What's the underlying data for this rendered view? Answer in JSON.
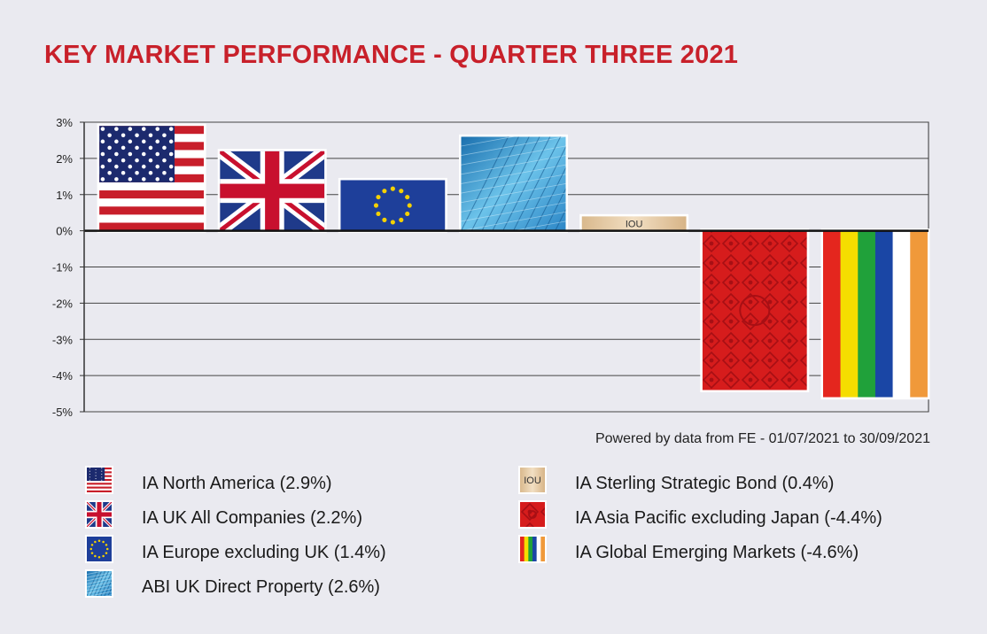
{
  "title": "KEY MARKET PERFORMANCE - QUARTER THREE 2021",
  "source": "Powered by data from FE - 01/07/2021 to 30/09/2021",
  "colors": {
    "title": "#c8202a",
    "us_red": "#c81e2a",
    "us_blue": "#1c2a6e",
    "uk_blue": "#1f3a8a",
    "eu_blue": "#1e3f9a",
    "eu_star": "#f5d100",
    "property": "#4aa8d8",
    "bond": "#e3c9a5",
    "asia_red": "#d61c1c",
    "em_stripes": [
      "#e4261e",
      "#f5dd00",
      "#20a13a",
      "#1a46a5",
      "#ffffff",
      "#f0993a"
    ]
  },
  "chart_data": {
    "type": "bar",
    "title": "KEY MARKET PERFORMANCE - QUARTER THREE 2021",
    "xlabel": "",
    "ylabel": "",
    "ylim": [
      -5,
      3
    ],
    "yticks": [
      3,
      2,
      1,
      0,
      -1,
      -2,
      -3,
      -4,
      -5
    ],
    "ytick_labels": [
      "3%",
      "2%",
      "1%",
      "0%",
      "-1%",
      "-2%",
      "-3%",
      "-4%",
      "-5%"
    ],
    "grid": true,
    "categories": [
      "IA North America",
      "IA UK All Companies",
      "IA Europe excluding UK",
      "ABI UK Direct Property",
      "IA Sterling Strategic Bond",
      "IA Asia Pacific excluding Japan",
      "IA Global Emerging Markets"
    ],
    "values": [
      2.9,
      2.2,
      1.4,
      2.6,
      0.4,
      -4.4,
      -4.6
    ],
    "fills": [
      "us-flag",
      "uk-flag",
      "eu-flag",
      "property",
      "iou",
      "asia",
      "em"
    ],
    "bar_annotation": "IOU"
  },
  "legend": {
    "left": [
      {
        "label": "IA North America (2.9%)",
        "fill": "us-flag"
      },
      {
        "label": "IA UK All Companies (2.2%)",
        "fill": "uk-flag"
      },
      {
        "label": "IA Europe excluding UK (1.4%)",
        "fill": "eu-flag"
      },
      {
        "label": "ABI UK Direct Property (2.6%)",
        "fill": "property"
      }
    ],
    "right": [
      {
        "label": "IA Sterling Strategic Bond (0.4%)",
        "fill": "iou",
        "swatch_text": "IOU"
      },
      {
        "label": "IA Asia Pacific excluding Japan (-4.4%)",
        "fill": "asia"
      },
      {
        "label": "IA Global Emerging Markets (-4.6%)",
        "fill": "em"
      }
    ]
  }
}
